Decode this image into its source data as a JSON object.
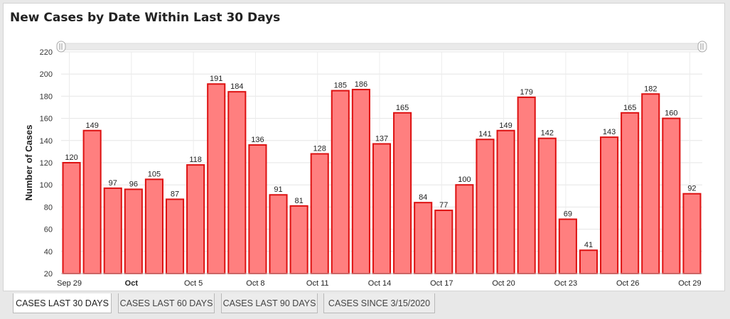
{
  "title": "New Cases by Date Within Last 30 Days",
  "tabs": [
    {
      "label": "CASES LAST 30 DAYS",
      "active": true
    },
    {
      "label": "CASES LAST 60 DAYS",
      "active": false
    },
    {
      "label": "CASES LAST 90 DAYS",
      "active": false
    },
    {
      "label": "CASES SINCE 3/15/2020",
      "active": false
    }
  ],
  "chart_data": {
    "type": "bar",
    "ylabel": "Number of Cases",
    "xlabel": "",
    "ylim": [
      20,
      220
    ],
    "yticks": [
      20,
      40,
      60,
      80,
      100,
      120,
      140,
      160,
      180,
      200,
      220
    ],
    "grid": true,
    "bar_color": "#ff7f7f",
    "bar_edge_color": "#dd1111",
    "values": [
      120,
      149,
      97,
      96,
      105,
      87,
      118,
      191,
      184,
      136,
      91,
      81,
      128,
      185,
      186,
      137,
      165,
      84,
      77,
      100,
      141,
      149,
      179,
      142,
      69,
      41,
      143,
      165,
      182,
      160,
      92
    ],
    "xticks": [
      {
        "index": 0,
        "label": "Sep 29",
        "bold": false
      },
      {
        "index": 3,
        "label": "Oct",
        "bold": true
      },
      {
        "index": 6,
        "label": "Oct 5",
        "bold": false
      },
      {
        "index": 9,
        "label": "Oct 8",
        "bold": false
      },
      {
        "index": 12,
        "label": "Oct 11",
        "bold": false
      },
      {
        "index": 15,
        "label": "Oct 14",
        "bold": false
      },
      {
        "index": 18,
        "label": "Oct 17",
        "bold": false
      },
      {
        "index": 21,
        "label": "Oct 20",
        "bold": false
      },
      {
        "index": 24,
        "label": "Oct 23",
        "bold": false
      },
      {
        "index": 27,
        "label": "Oct 26",
        "bold": false
      },
      {
        "index": 30,
        "label": "Oct 29",
        "bold": false
      }
    ]
  }
}
